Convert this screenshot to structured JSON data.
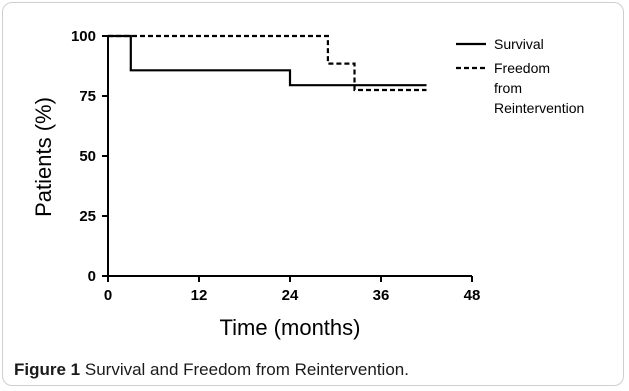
{
  "chart_data": {
    "type": "line",
    "xlabel": "Time (months)",
    "ylabel": "Patients (%)",
    "xlim": [
      0,
      48
    ],
    "ylim": [
      0,
      100
    ],
    "x_ticks": [
      "0",
      "12",
      "24",
      "36",
      "48"
    ],
    "y_ticks": [
      "0",
      "25",
      "50",
      "75",
      "100"
    ],
    "grid": false,
    "legend_position": "top-right",
    "series": [
      {
        "name": "Survival",
        "style": "solid",
        "color": "#000000",
        "x": [
          0,
          3,
          3,
          24,
          24,
          42
        ],
        "y": [
          100,
          100,
          85.7,
          85.7,
          79.5,
          79.5
        ]
      },
      {
        "name": "Freedom from Reintervention",
        "style": "dashed",
        "color": "#000000",
        "x": [
          0,
          29,
          29,
          32.5,
          32.5,
          42
        ],
        "y": [
          100,
          100,
          88.5,
          88.5,
          77.5,
          77.5
        ]
      }
    ]
  },
  "caption": {
    "label": "Figure 1",
    "text": "Survival and Freedom from Reintervention."
  }
}
